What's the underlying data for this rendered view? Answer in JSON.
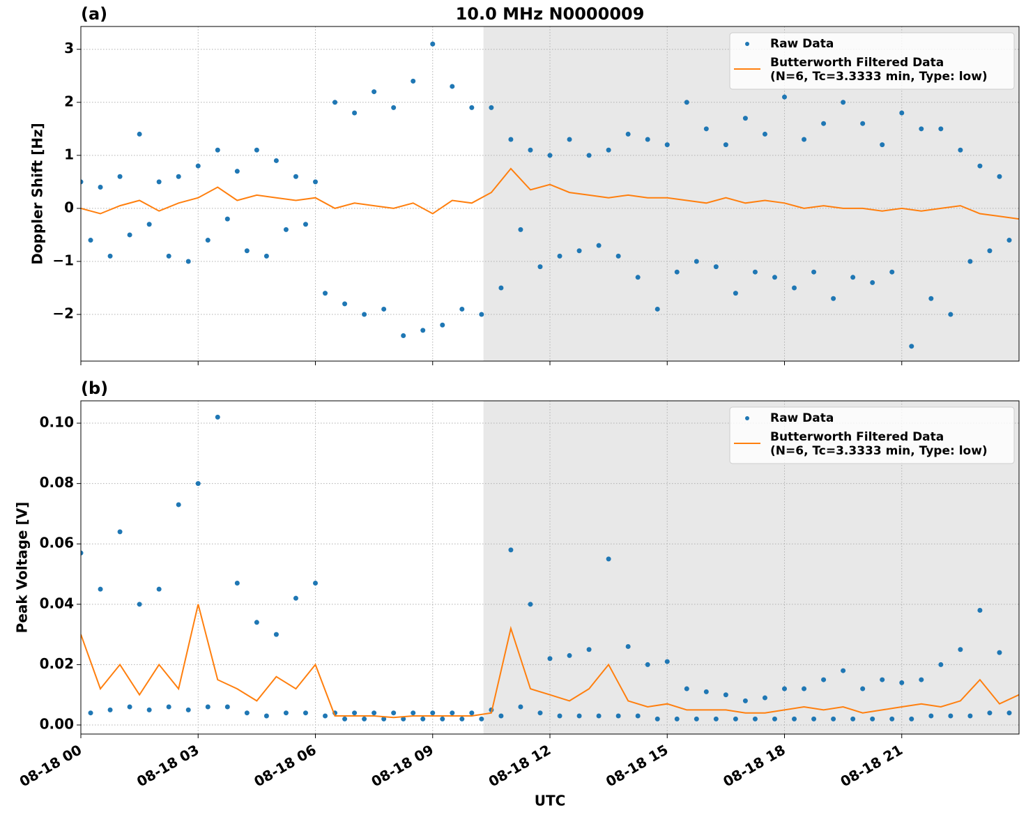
{
  "chart_data": [
    {
      "type": "scatter",
      "panel_label": "(a)",
      "title": "10.0 MHz N0000009",
      "ylabel": "Doppler Shift [Hz]",
      "xlim": [
        0,
        24
      ],
      "xticks": [
        0,
        3,
        6,
        9,
        12,
        15,
        18,
        21
      ],
      "ylim": [
        -2.88,
        3.43
      ],
      "yticks": [
        {
          "value": -2,
          "label": "−2"
        },
        {
          "value": -1,
          "label": "−1"
        },
        0,
        1,
        2,
        3
      ],
      "grid": true,
      "legend": "upper right",
      "shaded_span": [
        10.3,
        24
      ],
      "shade_color": "#e8e8e8",
      "series": [
        {
          "name": "Raw Data",
          "type": "scatter",
          "color": "#1f77b4",
          "x": [
            0,
            0.25,
            0.5,
            0.75,
            1,
            1.25,
            1.5,
            1.75,
            2,
            2.25,
            2.5,
            2.75,
            3,
            3.25,
            3.5,
            3.75,
            4,
            4.25,
            4.5,
            4.75,
            5,
            5.25,
            5.5,
            5.75,
            6,
            6.25,
            6.5,
            6.75,
            7,
            7.25,
            7.5,
            7.75,
            8,
            8.25,
            8.5,
            8.75,
            9,
            9.25,
            9.5,
            9.75,
            10,
            10.25,
            10.5,
            10.75,
            11,
            11.25,
            11.5,
            11.75,
            12,
            12.25,
            12.5,
            12.75,
            13,
            13.25,
            13.5,
            13.75,
            14,
            14.25,
            14.5,
            14.75,
            15,
            15.25,
            15.5,
            15.75,
            16,
            16.25,
            16.5,
            16.75,
            17,
            17.25,
            17.5,
            17.75,
            18,
            18.25,
            18.5,
            18.75,
            19,
            19.25,
            19.5,
            19.75,
            20,
            20.25,
            20.5,
            20.75,
            21,
            21.25,
            21.5,
            21.75,
            22,
            22.25,
            22.5,
            22.75,
            23,
            23.25,
            23.5,
            23.75
          ],
          "values": [
            0.5,
            -0.6,
            0.4,
            -0.9,
            0.6,
            -0.5,
            1.4,
            -0.3,
            0.5,
            -0.9,
            0.6,
            -1.0,
            0.8,
            -0.6,
            1.1,
            -0.2,
            0.7,
            -0.8,
            1.1,
            -0.9,
            0.9,
            -0.4,
            0.6,
            -0.3,
            0.5,
            -1.6,
            2.0,
            -1.8,
            1.8,
            -2.0,
            2.2,
            -1.9,
            1.9,
            -2.4,
            2.4,
            -2.3,
            3.1,
            -2.2,
            2.3,
            -1.9,
            1.9,
            -2.0,
            1.9,
            -1.5,
            1.3,
            -0.4,
            1.1,
            -1.1,
            1.0,
            -0.9,
            1.3,
            -0.8,
            1.0,
            -0.7,
            1.1,
            -0.9,
            1.4,
            -1.3,
            1.3,
            -1.9,
            1.2,
            -1.2,
            2.0,
            -1.0,
            1.5,
            -1.1,
            1.2,
            -1.6,
            1.7,
            -1.2,
            1.4,
            -1.3,
            2.1,
            -1.5,
            1.3,
            -1.2,
            1.6,
            -1.7,
            2.0,
            -1.3,
            1.6,
            -1.4,
            1.2,
            -1.2,
            1.8,
            -2.6,
            1.5,
            -1.7,
            1.5,
            -2.0,
            1.1,
            -1.0,
            0.8,
            -0.8,
            0.6,
            -0.6
          ]
        },
        {
          "name": "Butterworth Filtered Data\n(N=6, Tc=3.3333 min, Type: low)",
          "type": "line",
          "color": "#ff7f0e",
          "x": [
            0,
            0.5,
            1,
            1.5,
            2,
            2.5,
            3,
            3.5,
            4,
            4.5,
            5,
            5.5,
            6,
            6.5,
            7,
            7.5,
            8,
            8.5,
            9,
            9.5,
            10,
            10.5,
            11,
            11.5,
            12,
            12.5,
            13,
            13.5,
            14,
            14.5,
            15,
            15.5,
            16,
            16.5,
            17,
            17.5,
            18,
            18.5,
            19,
            19.5,
            20,
            20.5,
            21,
            21.5,
            22,
            22.5,
            23,
            23.5,
            24
          ],
          "values": [
            0,
            -0.1,
            0.05,
            0.15,
            -0.05,
            0.1,
            0.2,
            0.4,
            0.15,
            0.25,
            0.2,
            0.15,
            0.2,
            0.0,
            0.1,
            0.05,
            0.0,
            0.1,
            -0.1,
            0.15,
            0.1,
            0.3,
            0.75,
            0.35,
            0.45,
            0.3,
            0.25,
            0.2,
            0.25,
            0.2,
            0.2,
            0.15,
            0.1,
            0.2,
            0.1,
            0.15,
            0.1,
            0.0,
            0.05,
            0.0,
            0.0,
            -0.05,
            0.0,
            -0.05,
            0.0,
            0.05,
            -0.1,
            -0.15,
            -0.2
          ]
        }
      ]
    },
    {
      "type": "scatter",
      "panel_label": "(b)",
      "ylabel": "Peak Voltage [V]",
      "xlabel": "UTC",
      "xlim": [
        0,
        24
      ],
      "xticks": [
        {
          "value": 0,
          "label": "08-18 00"
        },
        {
          "value": 3,
          "label": "08-18 03"
        },
        {
          "value": 6,
          "label": "08-18 06"
        },
        {
          "value": 9,
          "label": "08-18 09"
        },
        {
          "value": 12,
          "label": "08-18 12"
        },
        {
          "value": 15,
          "label": "08-18 15"
        },
        {
          "value": 18,
          "label": "08-18 18"
        },
        {
          "value": 21,
          "label": "08-18 21"
        }
      ],
      "ylim": [
        -0.003,
        0.1074
      ],
      "yticks": [
        {
          "value": 0,
          "label": "0.00"
        },
        {
          "value": 0.02,
          "label": "0.02"
        },
        {
          "value": 0.04,
          "label": "0.04"
        },
        {
          "value": 0.06,
          "label": "0.06"
        },
        {
          "value": 0.08,
          "label": "0.08"
        },
        {
          "value": 0.1,
          "label": "0.10"
        }
      ],
      "grid": true,
      "legend": "upper right",
      "shaded_span": [
        10.3,
        24
      ],
      "shade_color": "#e8e8e8",
      "series": [
        {
          "name": "Raw Data",
          "type": "scatter",
          "color": "#1f77b4",
          "x": [
            0,
            0.25,
            0.5,
            0.75,
            1,
            1.25,
            1.5,
            1.75,
            2,
            2.25,
            2.5,
            2.75,
            3,
            3.25,
            3.5,
            3.75,
            4,
            4.25,
            4.5,
            4.75,
            5,
            5.25,
            5.5,
            5.75,
            6,
            6.25,
            6.5,
            6.75,
            7,
            7.25,
            7.5,
            7.75,
            8,
            8.25,
            8.5,
            8.75,
            9,
            9.25,
            9.5,
            9.75,
            10,
            10.25,
            10.5,
            10.75,
            11,
            11.25,
            11.5,
            11.75,
            12,
            12.25,
            12.5,
            12.75,
            13,
            13.25,
            13.5,
            13.75,
            14,
            14.25,
            14.5,
            14.75,
            15,
            15.25,
            15.5,
            15.75,
            16,
            16.25,
            16.5,
            16.75,
            17,
            17.25,
            17.5,
            17.75,
            18,
            18.25,
            18.5,
            18.75,
            19,
            19.25,
            19.5,
            19.75,
            20,
            20.25,
            20.5,
            20.75,
            21,
            21.25,
            21.5,
            21.75,
            22,
            22.25,
            22.5,
            22.75,
            23,
            23.25,
            23.5,
            23.75
          ],
          "values": [
            0.057,
            0.004,
            0.045,
            0.005,
            0.064,
            0.006,
            0.04,
            0.005,
            0.045,
            0.006,
            0.073,
            0.005,
            0.08,
            0.006,
            0.102,
            0.006,
            0.047,
            0.004,
            0.034,
            0.003,
            0.03,
            0.004,
            0.042,
            0.004,
            0.047,
            0.003,
            0.004,
            0.002,
            0.004,
            0.002,
            0.004,
            0.002,
            0.004,
            0.002,
            0.004,
            0.002,
            0.004,
            0.002,
            0.004,
            0.002,
            0.004,
            0.002,
            0.005,
            0.003,
            0.058,
            0.006,
            0.04,
            0.004,
            0.022,
            0.003,
            0.023,
            0.003,
            0.025,
            0.003,
            0.055,
            0.003,
            0.026,
            0.003,
            0.02,
            0.002,
            0.021,
            0.002,
            0.012,
            0.002,
            0.011,
            0.002,
            0.01,
            0.002,
            0.008,
            0.002,
            0.009,
            0.002,
            0.012,
            0.002,
            0.012,
            0.002,
            0.015,
            0.002,
            0.018,
            0.002,
            0.012,
            0.002,
            0.015,
            0.002,
            0.014,
            0.002,
            0.015,
            0.003,
            0.02,
            0.003,
            0.025,
            0.003,
            0.038,
            0.004,
            0.024,
            0.004
          ]
        },
        {
          "name": "Butterworth Filtered Data\n(N=6, Tc=3.3333 min, Type: low)",
          "type": "line",
          "color": "#ff7f0e",
          "x": [
            0,
            0.5,
            1,
            1.5,
            2,
            2.5,
            3,
            3.5,
            4,
            4.5,
            5,
            5.5,
            6,
            6.5,
            7,
            7.5,
            8,
            8.5,
            9,
            9.5,
            10,
            10.5,
            11,
            11.5,
            12,
            12.5,
            13,
            13.5,
            14,
            14.5,
            15,
            15.5,
            16,
            16.5,
            17,
            17.5,
            18,
            18.5,
            19,
            19.5,
            20,
            20.5,
            21,
            21.5,
            22,
            22.5,
            23,
            23.5,
            24
          ],
          "values": [
            0.03,
            0.012,
            0.02,
            0.01,
            0.02,
            0.012,
            0.04,
            0.015,
            0.012,
            0.008,
            0.016,
            0.012,
            0.02,
            0.003,
            0.003,
            0.003,
            0.0025,
            0.003,
            0.003,
            0.003,
            0.003,
            0.004,
            0.032,
            0.012,
            0.01,
            0.008,
            0.012,
            0.02,
            0.008,
            0.006,
            0.007,
            0.005,
            0.005,
            0.005,
            0.004,
            0.004,
            0.005,
            0.006,
            0.005,
            0.006,
            0.004,
            0.005,
            0.006,
            0.007,
            0.006,
            0.008,
            0.015,
            0.007,
            0.01
          ]
        }
      ]
    }
  ]
}
